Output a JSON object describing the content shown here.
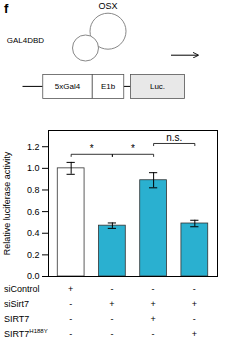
{
  "chart_data": {
    "type": "bar",
    "panel_label": "f",
    "diagram": {
      "activator": "OSX",
      "dbd": "GAL4DBD",
      "boxes": [
        "5xGal4",
        "E1b",
        "Luc."
      ]
    },
    "categories": [
      null,
      null,
      null,
      null
    ],
    "values": [
      1.0,
      0.47,
      0.89,
      0.49
    ],
    "errors": [
      0.055,
      0.025,
      0.07,
      0.03
    ],
    "colors": [
      "white",
      "#2ab0d0",
      "#2ab0d0",
      "#2ab0d0"
    ],
    "ylabel": "Relative luciferase activity",
    "ylim": [
      0,
      1.35
    ],
    "yticks": [
      {
        "value": 0,
        "label": "0.0"
      },
      0.2,
      0.4,
      0.6,
      0.8,
      {
        "value": 1.0,
        "label": "1.0"
      },
      1.2
    ],
    "tick_labels": "y",
    "stat_annotations": [
      {
        "from": 0,
        "to": 1,
        "y": 1.13,
        "text": "*"
      },
      {
        "from": 1,
        "to": 2,
        "y": 1.13,
        "text": "*"
      },
      {
        "from": 2,
        "to": 3,
        "y": 1.23,
        "text": "n.s."
      }
    ],
    "condition_rows": [
      {
        "name": "siControl",
        "marks": [
          "+",
          "-",
          "-",
          "-"
        ]
      },
      {
        "name": "siSirt7",
        "marks": [
          "-",
          "+",
          "+",
          "+"
        ]
      },
      {
        "name": "SIRT7",
        "marks": [
          "-",
          "-",
          "+",
          "-"
        ]
      },
      {
        "name": "SIRT7",
        "superscript": "H188Y",
        "marks": [
          "-",
          "-",
          "-",
          "+"
        ]
      }
    ]
  }
}
